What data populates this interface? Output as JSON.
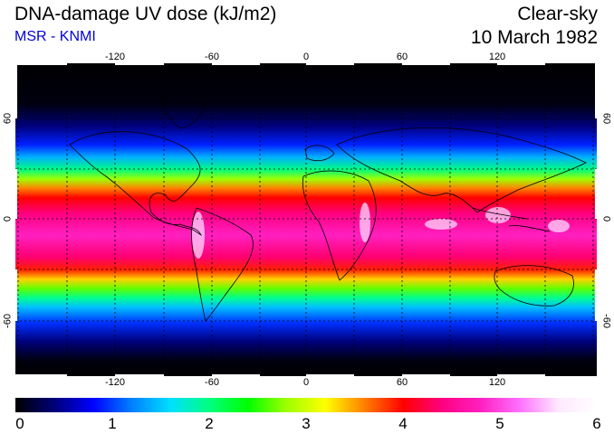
{
  "header": {
    "title": "DNA-damage UV dose (kJ/m2)",
    "subtitle": "MSR - KNMI",
    "sky": "Clear-sky",
    "date": "10 March 1982"
  },
  "map": {
    "lon_ticks": [
      "-120",
      "-60",
      "0",
      "60",
      "120"
    ],
    "lat_ticks": [
      "60",
      "0",
      "-60"
    ]
  },
  "colorbar": {
    "min": 0,
    "max": 6,
    "labels": [
      "0",
      "1",
      "2",
      "3",
      "4",
      "5",
      "6"
    ]
  },
  "colors": {
    "subtitle": "#0000dd",
    "scale": [
      "#000000",
      "#00007a",
      "#0000ff",
      "#0080ff",
      "#00e0ff",
      "#00ff80",
      "#00ff00",
      "#a0ff00",
      "#ffff00",
      "#ff8000",
      "#ff0000",
      "#ff0080",
      "#ff20c0",
      "#ff70ff",
      "#ffe8ff",
      "#ffffff"
    ]
  }
}
